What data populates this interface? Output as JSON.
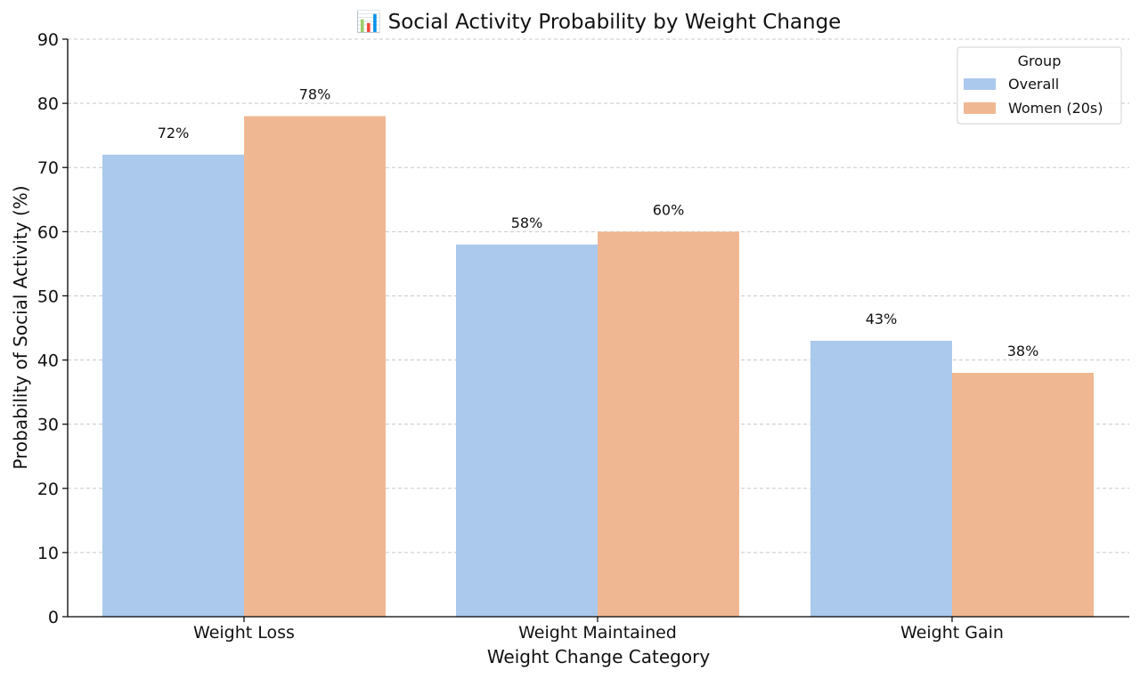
{
  "chart_data": {
    "type": "bar",
    "title": "📊 Social Activity Probability by Weight Change",
    "xlabel": "Weight Change Category",
    "ylabel": "Probability of Social Activity (%)",
    "categories": [
      "Weight Loss",
      "Weight Maintained",
      "Weight Gain"
    ],
    "series": [
      {
        "name": "Overall",
        "values": [
          72,
          58,
          43
        ],
        "color": "#abc9ec"
      },
      {
        "name": "Women (20s)",
        "values": [
          78,
          60,
          38
        ],
        "color": "#f0b892"
      }
    ],
    "data_labels": [
      [
        "72%",
        "58%",
        "43%"
      ],
      [
        "78%",
        "60%",
        "38%"
      ]
    ],
    "ylim": [
      0,
      90
    ],
    "yticks": [
      0,
      10,
      20,
      30,
      40,
      50,
      60,
      70,
      80,
      90
    ],
    "grid": true,
    "legend": {
      "title": "Group",
      "placement": "top-right"
    }
  }
}
